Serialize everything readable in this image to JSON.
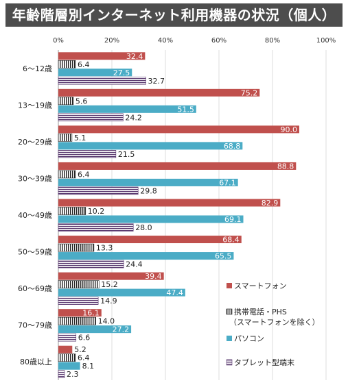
{
  "title": "年齢階層別インターネット利用機器の状況（個人）",
  "chart_data": {
    "type": "bar",
    "orientation": "horizontal",
    "title": "年齢階層別インターネット利用機器の状況（個人）",
    "xlim": [
      0,
      100
    ],
    "x_ticks": [
      "0%",
      "20%",
      "40%",
      "60%",
      "80%",
      "100%"
    ],
    "grid": true,
    "legend_position": "right",
    "categories": [
      "6～12歳",
      "13～19歳",
      "20～29歳",
      "30～39歳",
      "40～49歳",
      "50～59歳",
      "60～69歳",
      "70～79歳",
      "80歳以上"
    ],
    "series": [
      {
        "name": "スマートフォン",
        "color": "#c0504d",
        "pattern": "solid",
        "values": [
          32.4,
          75.2,
          90.0,
          88.8,
          82.9,
          68.4,
          39.4,
          16.1,
          5.2
        ]
      },
      {
        "name": "携帯電話・PHS（スマートフォンを除く）",
        "name_lines": [
          "携帯電話・PHS",
          "（スマートフォンを除く）"
        ],
        "color": "#222222",
        "pattern": "vertical-lines",
        "values": [
          6.4,
          5.6,
          5.1,
          6.4,
          10.2,
          13.3,
          15.2,
          14.0,
          6.4
        ]
      },
      {
        "name": "パソコン",
        "color": "#4bacc6",
        "pattern": "solid",
        "values": [
          27.5,
          51.5,
          68.8,
          67.1,
          69.1,
          65.5,
          47.4,
          27.2,
          8.1
        ]
      },
      {
        "name": "タブレット型端末",
        "color": "#5b3a70",
        "pattern": "horizontal-lines",
        "values": [
          32.7,
          24.2,
          21.5,
          29.8,
          28.0,
          24.4,
          14.9,
          6.6,
          2.3
        ]
      }
    ]
  }
}
